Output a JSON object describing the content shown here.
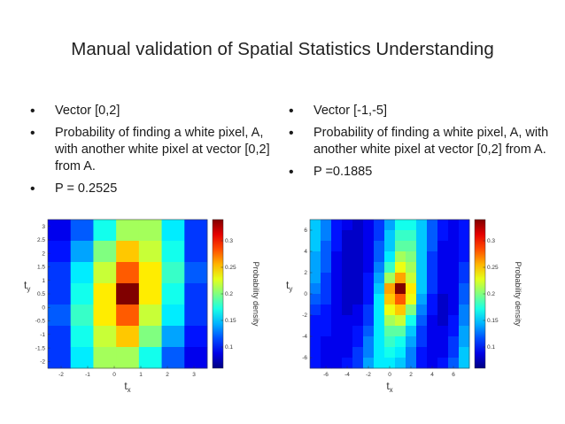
{
  "title": "Manual validation of Spatial Statistics Understanding",
  "left": {
    "bullets": [
      "Vector [0,2]",
      "Probability of finding a white pixel, A, with another white pixel at vector [0,2] from A.",
      "P = 0.2525"
    ]
  },
  "right": {
    "bullets": [
      "Vector [-1,-5]",
      "Probability of finding a white pixel, A, with another white pixel at vector [0,2] from A.",
      "P =0.1885"
    ]
  },
  "chart_data": [
    {
      "type": "heatmap",
      "xlabel": "t_x",
      "ylabel": "t_y",
      "colorbar_label": "Probability density",
      "colormap": "jet",
      "x_ticks": [
        "-2",
        "-1",
        "0",
        "1",
        "2",
        "3"
      ],
      "y_ticks": [
        "3",
        "2.5",
        "2",
        "1.5",
        "1",
        "0.5",
        "0",
        "-0.5",
        "-1",
        "-1.5",
        "-2"
      ],
      "colorbar_ticks": [
        "0.3",
        "0.25",
        "0.2",
        "0.15",
        "0.1"
      ],
      "vmin": 0.06,
      "vmax": 0.34,
      "colorbar_tick_values": [
        0.3,
        0.25,
        0.2,
        0.15,
        0.1
      ],
      "x_range": [
        -2.5,
        3.5
      ],
      "y_range": [
        -2.25,
        3.25
      ],
      "x_tick_values": [
        -2,
        -1,
        0,
        1,
        2,
        3
      ],
      "y_tick_values": [
        3,
        2.5,
        2,
        1.5,
        1,
        0.5,
        0,
        -0.5,
        -1,
        -1.5,
        -2
      ],
      "cols": 7,
      "rows": 7,
      "values": [
        [
          0.09,
          0.12,
          0.17,
          0.21,
          0.21,
          0.16,
          0.11
        ],
        [
          0.1,
          0.14,
          0.2,
          0.25,
          0.22,
          0.17,
          0.11
        ],
        [
          0.11,
          0.16,
          0.22,
          0.28,
          0.24,
          0.18,
          0.12
        ],
        [
          0.11,
          0.17,
          0.24,
          0.34,
          0.24,
          0.17,
          0.11
        ],
        [
          0.12,
          0.18,
          0.24,
          0.28,
          0.22,
          0.16,
          0.11
        ],
        [
          0.11,
          0.17,
          0.22,
          0.25,
          0.2,
          0.14,
          0.1
        ],
        [
          0.11,
          0.16,
          0.21,
          0.21,
          0.17,
          0.12,
          0.09
        ]
      ]
    },
    {
      "type": "heatmap",
      "xlabel": "t_x",
      "ylabel": "t_y",
      "colorbar_label": "Probability density",
      "colormap": "jet",
      "x_ticks": [
        "-6",
        "-4",
        "-2",
        "0",
        "2",
        "4",
        "6"
      ],
      "y_ticks": [
        "6",
        "4",
        "2",
        "0",
        "-2",
        "-4",
        "-6"
      ],
      "colorbar_ticks": [
        "0.3",
        "0.25",
        "0.2",
        "0.15",
        "0.1"
      ],
      "vmin": 0.06,
      "vmax": 0.34,
      "colorbar_tick_values": [
        0.3,
        0.25,
        0.2,
        0.15,
        0.1
      ],
      "x_range": [
        -7.5,
        7.5
      ],
      "y_range": [
        -7,
        7
      ],
      "x_tick_values": [
        -6,
        -4,
        -2,
        0,
        2,
        4,
        6
      ],
      "y_tick_values": [
        6,
        4,
        2,
        0,
        -2,
        -4,
        -6
      ],
      "cols": 15,
      "rows": 14,
      "values": [
        [
          0.15,
          0.13,
          0.1,
          0.09,
          0.08,
          0.09,
          0.11,
          0.14,
          0.17,
          0.17,
          0.15,
          0.12,
          0.1,
          0.09,
          0.1
        ],
        [
          0.15,
          0.13,
          0.1,
          0.08,
          0.08,
          0.09,
          0.11,
          0.15,
          0.18,
          0.18,
          0.15,
          0.12,
          0.1,
          0.09,
          0.1
        ],
        [
          0.15,
          0.12,
          0.1,
          0.08,
          0.08,
          0.09,
          0.12,
          0.15,
          0.19,
          0.19,
          0.15,
          0.12,
          0.09,
          0.09,
          0.1
        ],
        [
          0.14,
          0.12,
          0.09,
          0.08,
          0.08,
          0.09,
          0.12,
          0.16,
          0.21,
          0.2,
          0.15,
          0.11,
          0.09,
          0.09,
          0.1
        ],
        [
          0.14,
          0.12,
          0.09,
          0.08,
          0.08,
          0.09,
          0.13,
          0.18,
          0.23,
          0.21,
          0.15,
          0.11,
          0.09,
          0.09,
          0.11
        ],
        [
          0.14,
          0.11,
          0.09,
          0.08,
          0.08,
          0.1,
          0.14,
          0.21,
          0.26,
          0.22,
          0.15,
          0.11,
          0.09,
          0.09,
          0.11
        ],
        [
          0.13,
          0.11,
          0.09,
          0.08,
          0.08,
          0.1,
          0.15,
          0.26,
          0.34,
          0.24,
          0.15,
          0.11,
          0.09,
          0.09,
          0.12
        ],
        [
          0.12,
          0.11,
          0.09,
          0.08,
          0.08,
          0.1,
          0.16,
          0.25,
          0.28,
          0.23,
          0.14,
          0.1,
          0.08,
          0.09,
          0.12
        ],
        [
          0.11,
          0.1,
          0.09,
          0.08,
          0.09,
          0.11,
          0.16,
          0.23,
          0.25,
          0.2,
          0.13,
          0.1,
          0.08,
          0.09,
          0.13
        ],
        [
          0.1,
          0.1,
          0.09,
          0.09,
          0.09,
          0.11,
          0.16,
          0.21,
          0.22,
          0.17,
          0.12,
          0.09,
          0.08,
          0.1,
          0.13
        ],
        [
          0.1,
          0.1,
          0.09,
          0.09,
          0.1,
          0.12,
          0.16,
          0.19,
          0.19,
          0.15,
          0.11,
          0.09,
          0.09,
          0.1,
          0.14
        ],
        [
          0.1,
          0.09,
          0.09,
          0.09,
          0.1,
          0.13,
          0.16,
          0.18,
          0.17,
          0.14,
          0.11,
          0.09,
          0.09,
          0.11,
          0.14
        ],
        [
          0.1,
          0.09,
          0.09,
          0.09,
          0.11,
          0.13,
          0.16,
          0.17,
          0.16,
          0.13,
          0.1,
          0.09,
          0.09,
          0.11,
          0.15
        ],
        [
          0.1,
          0.09,
          0.09,
          0.1,
          0.11,
          0.14,
          0.16,
          0.16,
          0.15,
          0.13,
          0.1,
          0.09,
          0.1,
          0.12,
          0.15
        ]
      ]
    }
  ]
}
